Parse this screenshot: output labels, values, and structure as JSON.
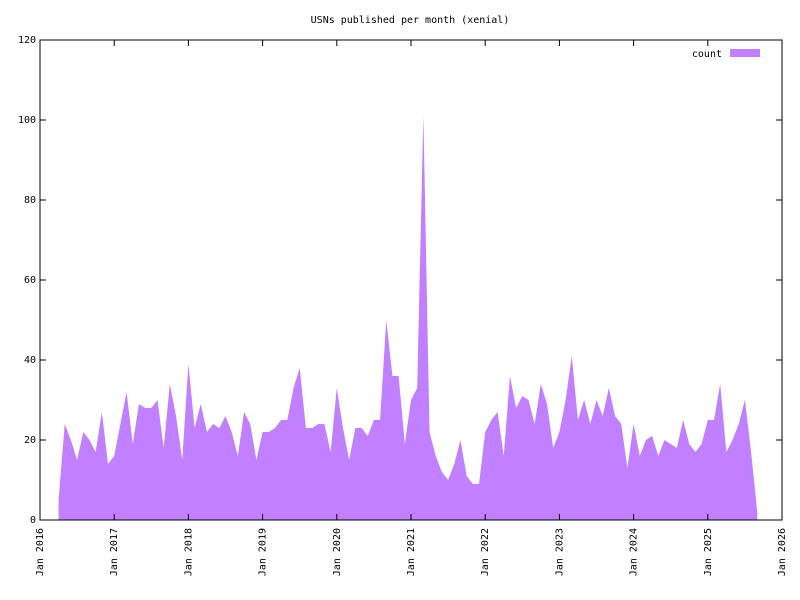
{
  "chart_data": {
    "type": "area",
    "title": "USNs published per month (xenial)",
    "x": [
      "2016-04",
      "2016-05",
      "2016-06",
      "2016-07",
      "2016-08",
      "2016-09",
      "2016-10",
      "2016-11",
      "2016-12",
      "2017-01",
      "2017-02",
      "2017-03",
      "2017-04",
      "2017-05",
      "2017-06",
      "2017-07",
      "2017-08",
      "2017-09",
      "2017-10",
      "2017-11",
      "2017-12",
      "2018-01",
      "2018-02",
      "2018-03",
      "2018-04",
      "2018-05",
      "2018-06",
      "2018-07",
      "2018-08",
      "2018-09",
      "2018-10",
      "2018-11",
      "2018-12",
      "2019-01",
      "2019-02",
      "2019-03",
      "2019-04",
      "2019-05",
      "2019-06",
      "2019-07",
      "2019-08",
      "2019-09",
      "2019-10",
      "2019-11",
      "2019-12",
      "2020-01",
      "2020-02",
      "2020-03",
      "2020-04",
      "2020-05",
      "2020-06",
      "2020-07",
      "2020-08",
      "2020-09",
      "2020-10",
      "2020-11",
      "2020-12",
      "2021-01",
      "2021-02",
      "2021-03",
      "2021-04",
      "2021-05",
      "2021-06",
      "2021-07",
      "2021-08",
      "2021-09",
      "2021-10",
      "2021-11",
      "2021-12",
      "2022-01",
      "2022-02",
      "2022-03",
      "2022-04",
      "2022-05",
      "2022-06",
      "2022-07",
      "2022-08",
      "2022-09",
      "2022-10",
      "2022-11",
      "2022-12",
      "2023-01",
      "2023-02",
      "2023-03",
      "2023-04",
      "2023-05",
      "2023-06",
      "2023-07",
      "2023-08",
      "2023-09",
      "2023-10",
      "2023-11",
      "2023-12",
      "2024-01",
      "2024-02",
      "2024-03",
      "2024-04",
      "2024-05",
      "2024-06",
      "2024-07",
      "2024-08",
      "2024-09",
      "2024-10",
      "2024-11",
      "2024-12",
      "2025-01",
      "2025-02",
      "2025-03",
      "2025-04",
      "2025-05",
      "2025-06",
      "2025-07",
      "2025-08",
      "2025-09"
    ],
    "series": [
      {
        "name": "count",
        "color": "#c080ff",
        "values": [
          5,
          24,
          20,
          15,
          22,
          20,
          17,
          27,
          14,
          16,
          24,
          32,
          19,
          29,
          28,
          28,
          30,
          18,
          34,
          26,
          15,
          39,
          23,
          29,
          22,
          24,
          23,
          26,
          22,
          16,
          27,
          24,
          15,
          22,
          22,
          23,
          25,
          25,
          33,
          38,
          23,
          23,
          24,
          24,
          17,
          33,
          23,
          15,
          23,
          23,
          21,
          25,
          25,
          50,
          36,
          36,
          19,
          30,
          33,
          101,
          22,
          16,
          12,
          10,
          14,
          20,
          11,
          9,
          9,
          22,
          25,
          27,
          16,
          36,
          28,
          31,
          30,
          24,
          34,
          29,
          18,
          22,
          30,
          41,
          25,
          30,
          24,
          30,
          26,
          33,
          26,
          24,
          13,
          24,
          16,
          20,
          21,
          16,
          20,
          19,
          18,
          25,
          19,
          17,
          19,
          25,
          25,
          34,
          17,
          20,
          24,
          30,
          17,
          2
        ]
      }
    ],
    "xlim": [
      "2016-01",
      "2026-01"
    ],
    "xticks": [
      {
        "value": "2016-01",
        "label": "Jan 2016"
      },
      {
        "value": "2017-01",
        "label": "Jan 2017"
      },
      {
        "value": "2018-01",
        "label": "Jan 2018"
      },
      {
        "value": "2019-01",
        "label": "Jan 2019"
      },
      {
        "value": "2020-01",
        "label": "Jan 2020"
      },
      {
        "value": "2021-01",
        "label": "Jan 2021"
      },
      {
        "value": "2022-01",
        "label": "Jan 2022"
      },
      {
        "value": "2023-01",
        "label": "Jan 2023"
      },
      {
        "value": "2024-01",
        "label": "Jan 2024"
      },
      {
        "value": "2025-01",
        "label": "Jan 2025"
      },
      {
        "value": "2026-01",
        "label": "Jan 2026"
      }
    ],
    "ylim": [
      0,
      120
    ],
    "yticks": [
      0,
      20,
      40,
      60,
      80,
      100,
      120
    ],
    "legend": "top right",
    "grid": false
  }
}
